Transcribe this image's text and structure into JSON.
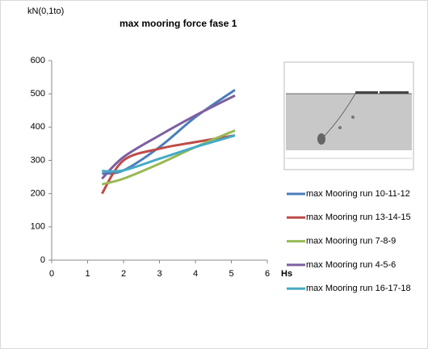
{
  "chart_data": {
    "type": "line",
    "title": "max  mooring force fase 1",
    "y_label": "kN(0,1to)",
    "x_label": "Hs",
    "x": [
      1.4,
      2,
      3,
      4,
      5.1
    ],
    "series": [
      {
        "name": "max Mooring run 10-11-12",
        "color": "#4a7ebb",
        "values": [
          260,
          270,
          340,
          430,
          512
        ]
      },
      {
        "name": "max Mooring run 13-14-15",
        "color": "#be4b48",
        "values": [
          200,
          300,
          335,
          355,
          375
        ]
      },
      {
        "name": "max Mooring run 7-8-9",
        "color": "#98b954",
        "values": [
          228,
          245,
          290,
          340,
          390
        ]
      },
      {
        "name": "max Mooring run 4-5-6",
        "color": "#7d60a0",
        "values": [
          245,
          310,
          375,
          435,
          495
        ]
      },
      {
        "name": "max Mooring run 16-17-18",
        "color": "#46aac5",
        "values": [
          268,
          270,
          305,
          340,
          375
        ]
      }
    ],
    "xlim": [
      0,
      6
    ],
    "xticks": [
      0,
      1,
      2,
      3,
      4,
      5,
      6
    ],
    "ylim": [
      0,
      600
    ],
    "yticks": [
      0,
      100,
      200,
      300,
      400,
      500,
      600
    ],
    "grid": false,
    "legend": "right"
  }
}
